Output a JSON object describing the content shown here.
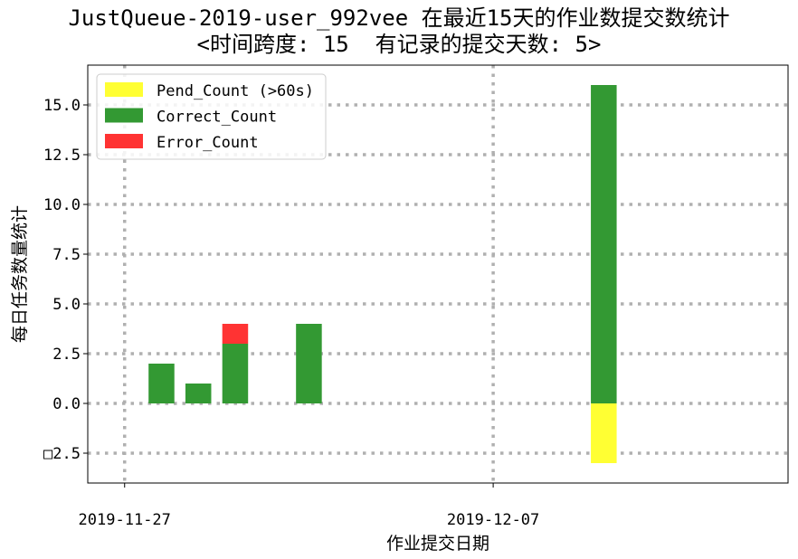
{
  "chart_data": {
    "type": "bar",
    "stacked": true,
    "title": "JustQueue-2019-user_992vee 在最近15天的作业数提交数统计",
    "subtitle": "<时间跨度: 15  有记录的提交天数: 5>",
    "xlabel": "作业提交日期",
    "ylabel": "每日任务数量统计",
    "x_tick_labels": [
      "2019-11-27",
      "2019-12-07"
    ],
    "y_ticks": [
      -2.5,
      0.0,
      2.5,
      5.0,
      7.5,
      10.0,
      12.5,
      15.0
    ],
    "y_tick_labels": [
      "□2.5",
      "0.0",
      "2.5",
      "5.0",
      "7.5",
      "10.0",
      "12.5",
      "15.0"
    ],
    "ylim": [
      -4.0,
      17.0
    ],
    "grid": true,
    "legend_position": "top-left",
    "categories": [
      "2019-11-28",
      "2019-11-29",
      "2019-11-30",
      "2019-12-02",
      "2019-12-10"
    ],
    "series": [
      {
        "name": "Pend_Count (>60s)",
        "color": "#ffff33",
        "values": [
          0,
          0,
          0,
          0,
          -3
        ]
      },
      {
        "name": "Correct_Count",
        "color": "#339933",
        "values": [
          2,
          1,
          3,
          4,
          16
        ]
      },
      {
        "name": "Error_Count",
        "color": "#ff3333",
        "values": [
          0,
          0,
          1,
          0,
          0
        ]
      }
    ]
  }
}
